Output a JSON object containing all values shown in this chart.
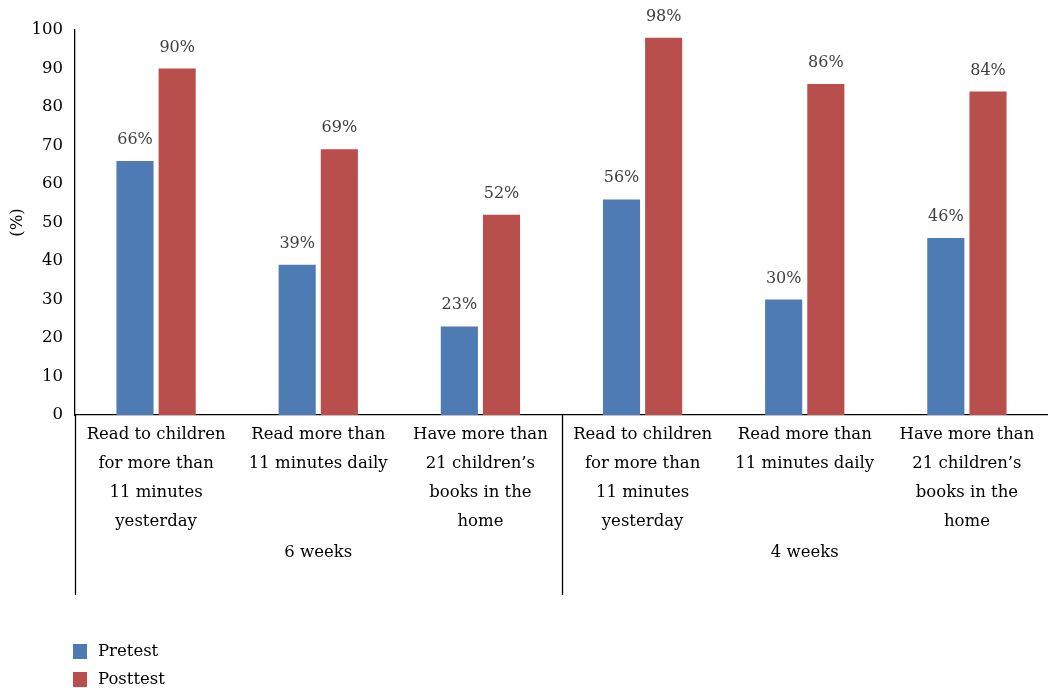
{
  "chart_data": {
    "type": "bar",
    "ylabel": "(%)",
    "categories": [
      "Read to children for more than 11 minutes yesterday",
      "Read more than 11 minutes daily",
      "Have more than 21 children’s books in the home",
      "Read to children for more than 11 minutes yesterday",
      "Read more than 11 minutes daily",
      "Have more than 21 children’s books in the home"
    ],
    "series": [
      {
        "name": "Pretest",
        "color": "#4f7bb4",
        "values": [
          66,
          39,
          23,
          56,
          30,
          46
        ],
        "value_labels": [
          "66%",
          "39%",
          "23%",
          "56%",
          "30%",
          "46%"
        ]
      },
      {
        "name": "Posttest",
        "color": "#b94f4d",
        "values": [
          90,
          69,
          52,
          98,
          86,
          84
        ],
        "value_labels": [
          "90%",
          "69%",
          "52%",
          "98%",
          "86%",
          "84%"
        ]
      }
    ],
    "ylim": [
      0,
      100
    ],
    "yticks": [
      0,
      10,
      20,
      30,
      40,
      50,
      60,
      70,
      80,
      90,
      100
    ],
    "legend": "bottom left",
    "annotations": [
      "6 weeks",
      "4 weeks"
    ]
  }
}
